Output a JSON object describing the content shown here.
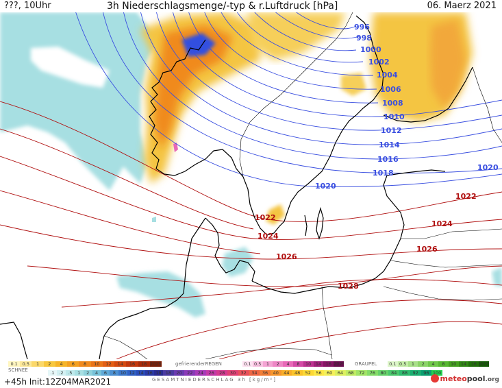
{
  "header": {
    "left": "???, 10Uhr",
    "title": "3h Niederschlagsmenge/-typ & r.Luftdruck [hPa]",
    "date": "06. Maerz 2021"
  },
  "isobars": [
    {
      "label": "996"
    },
    {
      "label": "998"
    },
    {
      "label": "1000"
    },
    {
      "label": "1002"
    },
    {
      "label": "1004"
    },
    {
      "label": "1006"
    },
    {
      "label": "1008"
    },
    {
      "label": "1010"
    },
    {
      "label": "1012"
    },
    {
      "label": "1014"
    },
    {
      "label": "1016"
    },
    {
      "label": "1018"
    },
    {
      "label": "1020"
    },
    {
      "label": "1020"
    },
    {
      "label": "1022"
    },
    {
      "label": "1022"
    },
    {
      "label": "1024"
    },
    {
      "label": "1024"
    },
    {
      "label": "1026"
    },
    {
      "label": "1026"
    },
    {
      "label": "1028"
    }
  ],
  "colors": {
    "low_pressure": "#3a4fe0",
    "high_pressure": "#b01010",
    "snow": "#a7dfe2",
    "rain_light": "#f4c542",
    "rain_heavy": "#f08a1e",
    "rain_peak": "#3050e0",
    "coastline": "#000000"
  },
  "legend": {
    "rain": {
      "label": "",
      "values": [
        "0.1",
        "0.5",
        "1",
        "2",
        "4",
        "6",
        "8",
        "10",
        "12",
        "14",
        "16",
        "18",
        "2025+"
      ],
      "colors": [
        "#fff6c0",
        "#fde99a",
        "#fbd86a",
        "#f8c73e",
        "#f6b428",
        "#f4a020",
        "#f08a1e",
        "#ea7418",
        "#e25e14",
        "#d44a10",
        "#c2380c",
        "#a82a08",
        "#7a1e06"
      ]
    },
    "freezing_rain": {
      "label": "gefrierenderREGEN",
      "values": [
        "0.1",
        "0.5",
        "1",
        "2",
        "4",
        "8",
        "10",
        "14",
        "16",
        "2025+"
      ],
      "colors": [
        "#fde0f0",
        "#f9c2e2",
        "#f4a4d4",
        "#ee86c6",
        "#e868b8",
        "#d44aa6",
        "#bc3290",
        "#a0207a",
        "#861464",
        "#6a0c4e"
      ]
    },
    "graupel": {
      "label": "GRAUPEL",
      "values": [
        "0.1",
        "0.5",
        "1",
        "2",
        "4",
        "8",
        "10",
        "14",
        "16",
        "2025+"
      ],
      "colors": [
        "#dcf5c8",
        "#c4eca8",
        "#a8e088",
        "#8cd468",
        "#70c84a",
        "#58b832",
        "#44a020",
        "#308814",
        "#20700a",
        "#145a04"
      ]
    },
    "snow": {
      "label": "SCHNEE",
      "values": [
        ".1",
        ".2",
        ".5",
        "1",
        "2",
        "4",
        "6",
        "8",
        "10",
        "12",
        "14",
        "16",
        "18"
      ],
      "colors": [
        "#e6f7f8",
        "#d2f0f2",
        "#bde8ea",
        "#a7dfe2",
        "#8fd2dc",
        "#76c1d8",
        "#5fa8d6",
        "#4c90d2",
        "#3c78cc",
        "#3060c4",
        "#2a4cb8",
        "#2a3aa6",
        "#2a2c90"
      ]
    },
    "total": {
      "label": "GESAMTNIEDERSCHLAG 3h [kg/m²]",
      "values": [
        "18",
        "20",
        "22",
        "24",
        "26",
        "28",
        "30",
        "32",
        "34",
        "36",
        "40",
        "44",
        "48",
        "52",
        "56",
        "60",
        "64",
        "68",
        "72",
        "76",
        "80",
        "84",
        "88",
        "92",
        "96",
        "100"
      ],
      "colors": [
        "#4a3aa0",
        "#6a3ab0",
        "#8a3ab8",
        "#a83ab8",
        "#c43aa8",
        "#d43a90",
        "#e04074",
        "#e8505a",
        "#ee6644",
        "#f27e36",
        "#f6962c",
        "#f8ae28",
        "#fac42a",
        "#fcd834",
        "#fde846",
        "#f4f05a",
        "#dcf060",
        "#c0ec64",
        "#a2e466",
        "#84dc68",
        "#66d26a",
        "#4ac86c",
        "#30bc6e",
        "#1aae70",
        "#0a9e70",
        "#24d050"
      ]
    }
  },
  "footer": {
    "init": "+45h Init:12Z04MAR2021",
    "brand_a": "meteo",
    "brand_b": "pool",
    "brand_c": ".org"
  }
}
